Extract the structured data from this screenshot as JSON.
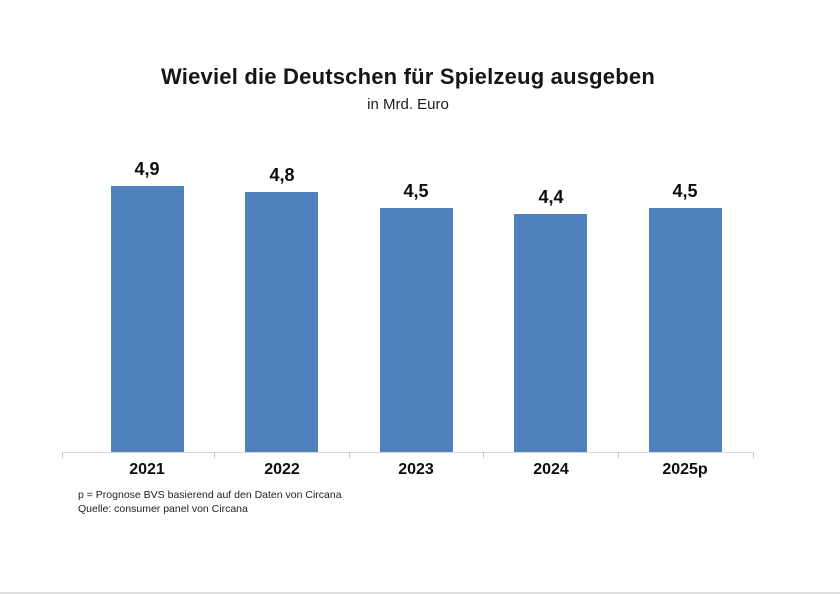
{
  "chart_data": {
    "type": "bar",
    "title": "Wieviel die Deutschen für Spielzeug ausgeben",
    "subtitle": "in Mrd. Euro",
    "categories": [
      "2021",
      "2022",
      "2023",
      "2024",
      "2025p"
    ],
    "values": [
      4.9,
      4.8,
      4.5,
      4.4,
      4.5
    ],
    "value_labels": [
      "4,9",
      "4,8",
      "4,5",
      "4,4",
      "4,5"
    ],
    "ylim": [
      0,
      5.5
    ],
    "grid": false,
    "legend": false,
    "bar_color": "#4f81bd",
    "axis_line_color": "#d6d6d6",
    "tick_color": "#c6c6c6"
  },
  "footnotes": {
    "line1": "p = Prognose BVS basierend auf den Daten von Circana",
    "line2": "Quelle: consumer panel von Circana"
  }
}
